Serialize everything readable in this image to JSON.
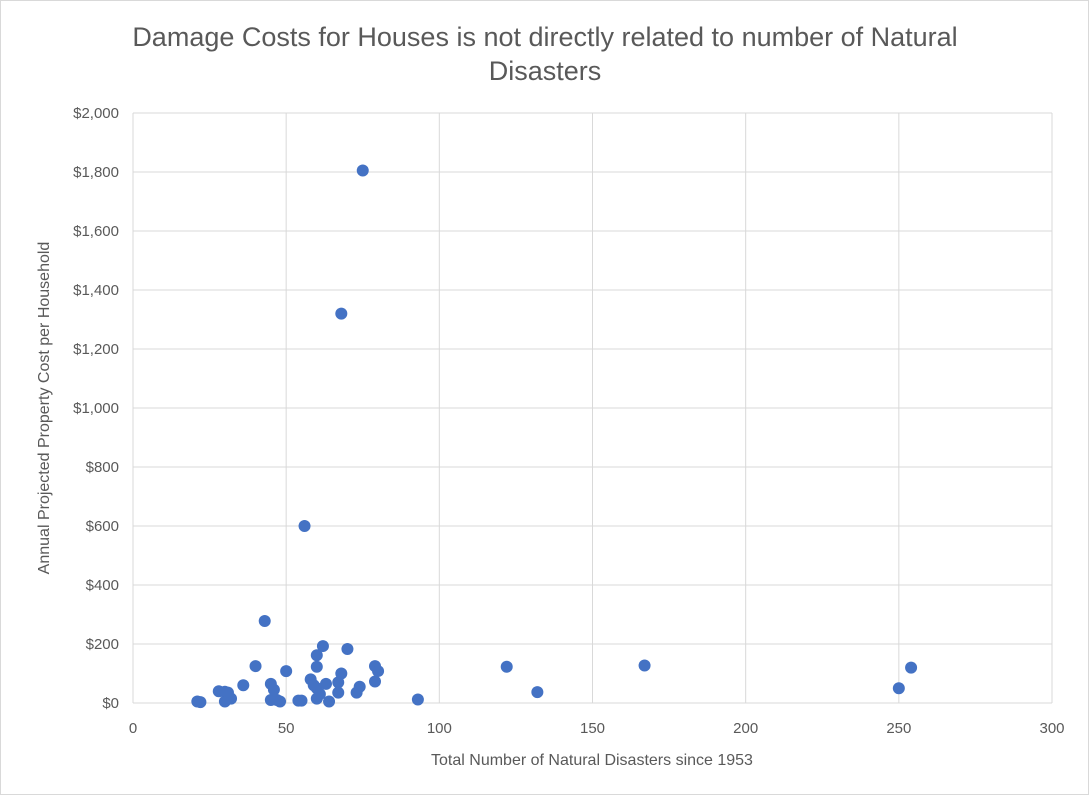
{
  "chart_data": {
    "type": "scatter",
    "title_lines": [
      "Damage Costs for Houses is not directly related to number of Natural",
      "Disasters"
    ],
    "xlabel": "Total Number of Natural Disasters since 1953",
    "ylabel": "Annual Projected Property Cost per Household",
    "xlim": [
      0,
      300
    ],
    "ylim": [
      0,
      2000
    ],
    "x_ticks": [
      0,
      50,
      100,
      150,
      200,
      250,
      300
    ],
    "x_tick_labels": [
      "0",
      "50",
      "100",
      "150",
      "200",
      "250",
      "300"
    ],
    "y_ticks": [
      0,
      200,
      400,
      600,
      800,
      1000,
      1200,
      1400,
      1600,
      1800,
      2000
    ],
    "y_tick_labels": [
      "$0",
      "$200",
      "$400",
      "$600",
      "$800",
      "$1,000",
      "$1,200",
      "$1,400",
      "$1,600",
      "$1,800",
      "$2,000"
    ],
    "grid": true,
    "marker_color": "#4472c4",
    "points": [
      {
        "x": 21,
        "y": 5
      },
      {
        "x": 22,
        "y": 3
      },
      {
        "x": 28,
        "y": 40
      },
      {
        "x": 30,
        "y": 38
      },
      {
        "x": 30,
        "y": 5
      },
      {
        "x": 31,
        "y": 35
      },
      {
        "x": 32,
        "y": 15
      },
      {
        "x": 36,
        "y": 60
      },
      {
        "x": 40,
        "y": 125
      },
      {
        "x": 43,
        "y": 278
      },
      {
        "x": 45,
        "y": 65
      },
      {
        "x": 45,
        "y": 10
      },
      {
        "x": 46,
        "y": 45
      },
      {
        "x": 47,
        "y": 10
      },
      {
        "x": 48,
        "y": 5
      },
      {
        "x": 50,
        "y": 108
      },
      {
        "x": 54,
        "y": 8
      },
      {
        "x": 55,
        "y": 8
      },
      {
        "x": 56,
        "y": 600
      },
      {
        "x": 58,
        "y": 80
      },
      {
        "x": 59,
        "y": 60
      },
      {
        "x": 60,
        "y": 162
      },
      {
        "x": 60,
        "y": 123
      },
      {
        "x": 60,
        "y": 50
      },
      {
        "x": 60,
        "y": 15
      },
      {
        "x": 61,
        "y": 30
      },
      {
        "x": 62,
        "y": 193
      },
      {
        "x": 63,
        "y": 65
      },
      {
        "x": 64,
        "y": 5
      },
      {
        "x": 67,
        "y": 35
      },
      {
        "x": 67,
        "y": 70
      },
      {
        "x": 68,
        "y": 100
      },
      {
        "x": 68,
        "y": 1320
      },
      {
        "x": 70,
        "y": 183
      },
      {
        "x": 73,
        "y": 35
      },
      {
        "x": 74,
        "y": 55
      },
      {
        "x": 75,
        "y": 1805
      },
      {
        "x": 79,
        "y": 125
      },
      {
        "x": 79,
        "y": 73
      },
      {
        "x": 80,
        "y": 108
      },
      {
        "x": 93,
        "y": 12
      },
      {
        "x": 122,
        "y": 123
      },
      {
        "x": 132,
        "y": 37
      },
      {
        "x": 167,
        "y": 127
      },
      {
        "x": 250,
        "y": 50
      },
      {
        "x": 254,
        "y": 120
      }
    ]
  }
}
